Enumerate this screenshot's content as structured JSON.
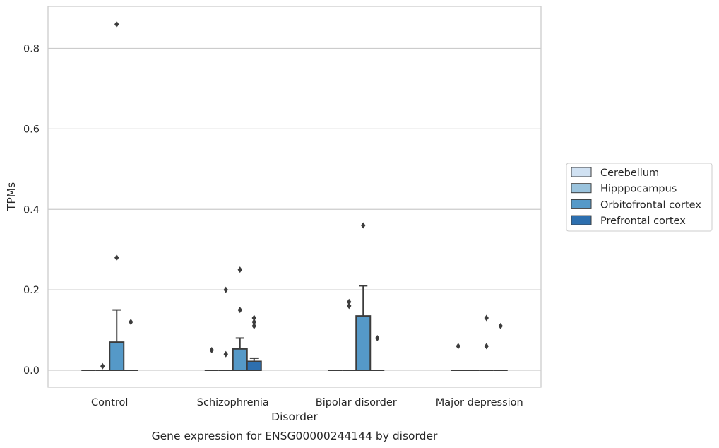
{
  "chart_data": {
    "type": "box",
    "caption": "Gene expression for ENSG00000244144 by disorder",
    "xlabel": "Disorder",
    "ylabel": "TPMs",
    "ylim": [
      -0.042,
      0.905
    ],
    "yticks": [
      0.0,
      0.2,
      0.4,
      0.6,
      0.8
    ],
    "ytick_labels": [
      "0.0",
      "0.2",
      "0.4",
      "0.6",
      "0.8"
    ],
    "grid": "horizontal",
    "legend_position": "right",
    "categories": [
      "Control",
      "Schizophrenia",
      "Bipolar disorder",
      "Major depression"
    ],
    "series": [
      {
        "name": "Cerebellum",
        "color": "#d0e1f2",
        "boxes": [
          {
            "q1": 0,
            "median": 0,
            "q3": 0,
            "whisker_low": 0,
            "whisker_high": 0,
            "outliers": []
          },
          {
            "q1": 0,
            "median": 0,
            "q3": 0,
            "whisker_low": 0,
            "whisker_high": 0,
            "outliers": []
          },
          {
            "q1": 0,
            "median": 0,
            "q3": 0,
            "whisker_low": 0,
            "whisker_high": 0,
            "outliers": []
          },
          {
            "q1": 0,
            "median": 0,
            "q3": 0,
            "whisker_low": 0,
            "whisker_high": 0,
            "outliers": []
          }
        ]
      },
      {
        "name": "Hipppocampus",
        "color": "#9ac3dd",
        "boxes": [
          {
            "q1": 0,
            "median": 0,
            "q3": 0,
            "whisker_low": 0,
            "whisker_high": 0,
            "outliers": [
              0.01
            ]
          },
          {
            "q1": 0,
            "median": 0,
            "q3": 0,
            "whisker_low": 0,
            "whisker_high": 0,
            "outliers": [
              0.04,
              0.2
            ]
          },
          {
            "q1": 0,
            "median": 0,
            "q3": 0,
            "whisker_low": 0,
            "whisker_high": 0,
            "outliers": []
          },
          {
            "q1": 0,
            "median": 0,
            "q3": 0,
            "whisker_low": 0,
            "whisker_high": 0,
            "outliers": []
          }
        ]
      },
      {
        "name": "Orbitofrontal cortex",
        "color": "#5599c8",
        "boxes": [
          {
            "q1": 0,
            "median": 0,
            "q3": 0.07,
            "whisker_low": 0,
            "whisker_high": 0.15,
            "outliers": [
              0.28,
              0.86
            ]
          },
          {
            "q1": 0,
            "median": 0,
            "q3": 0.053,
            "whisker_low": 0,
            "whisker_high": 0.08,
            "outliers": [
              0.15,
              0.25
            ]
          },
          {
            "q1": 0,
            "median": 0,
            "q3": 0.135,
            "whisker_low": 0,
            "whisker_high": 0.21,
            "outliers": [
              0.36
            ]
          },
          {
            "q1": 0,
            "median": 0,
            "q3": 0,
            "whisker_low": 0,
            "whisker_high": 0,
            "outliers": [
              0.06,
              0.13
            ]
          }
        ]
      },
      {
        "name": "Prefrontal cortex",
        "color": "#2d6faf",
        "boxes": [
          {
            "q1": 0,
            "median": 0,
            "q3": 0,
            "whisker_low": 0,
            "whisker_high": 0,
            "outliers": [
              0.12
            ]
          },
          {
            "q1": 0,
            "median": 0,
            "q3": 0.022,
            "whisker_low": 0,
            "whisker_high": 0.03,
            "outliers": [
              0.11,
              0.12,
              0.13
            ]
          },
          {
            "q1": 0,
            "median": 0,
            "q3": 0,
            "whisker_low": 0,
            "whisker_high": 0,
            "outliers": [
              0.08
            ]
          },
          {
            "q1": 0,
            "median": 0,
            "q3": 0,
            "whisker_low": 0,
            "whisker_high": 0,
            "outliers": [
              0.11
            ]
          }
        ]
      }
    ],
    "extra_outliers": [
      {
        "category_index": 0,
        "series_index": 1,
        "values": []
      },
      {
        "category_index": 1,
        "series_index": 0,
        "values": [
          0.05
        ]
      },
      {
        "category_index": 2,
        "series_index": 1,
        "values": [
          0.16,
          0.17
        ]
      },
      {
        "category_index": 3,
        "series_index": 0,
        "values": [
          0.06
        ]
      }
    ]
  }
}
